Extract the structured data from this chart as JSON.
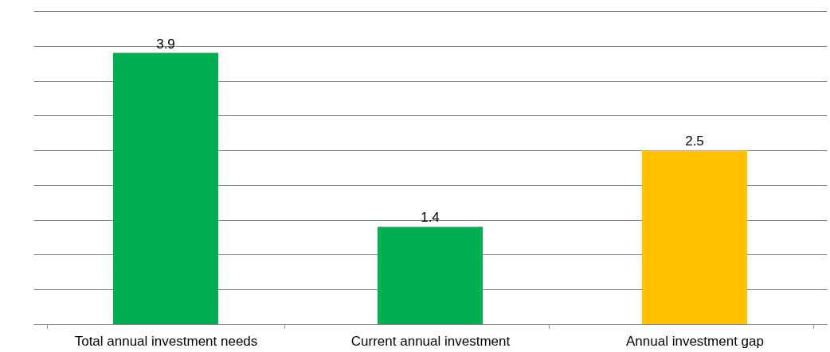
{
  "chart_data": {
    "type": "bar",
    "categories": [
      "Total annual investment needs",
      "Current annual investment",
      "Annual investment gap"
    ],
    "values": [
      3.9,
      1.4,
      2.5
    ],
    "colors": [
      "#00b050",
      "#00b050",
      "#ffc000"
    ],
    "ylim": [
      0,
      4.5
    ],
    "yticks": [
      {
        "value": 0,
        "label": null
      },
      {
        "value": 0.5,
        "label": null
      },
      {
        "value": 1,
        "label": null
      },
      {
        "value": 1.5,
        "label": null
      },
      {
        "value": 2,
        "label": null
      },
      {
        "value": 2.5,
        "label": null
      },
      {
        "value": 3,
        "label": null
      },
      {
        "value": 3.5,
        "label": null
      },
      {
        "value": 4,
        "label": null
      },
      {
        "value": 4.5,
        "label": null
      }
    ],
    "tick_labels": "x",
    "grid": "y",
    "data_labels": true
  }
}
